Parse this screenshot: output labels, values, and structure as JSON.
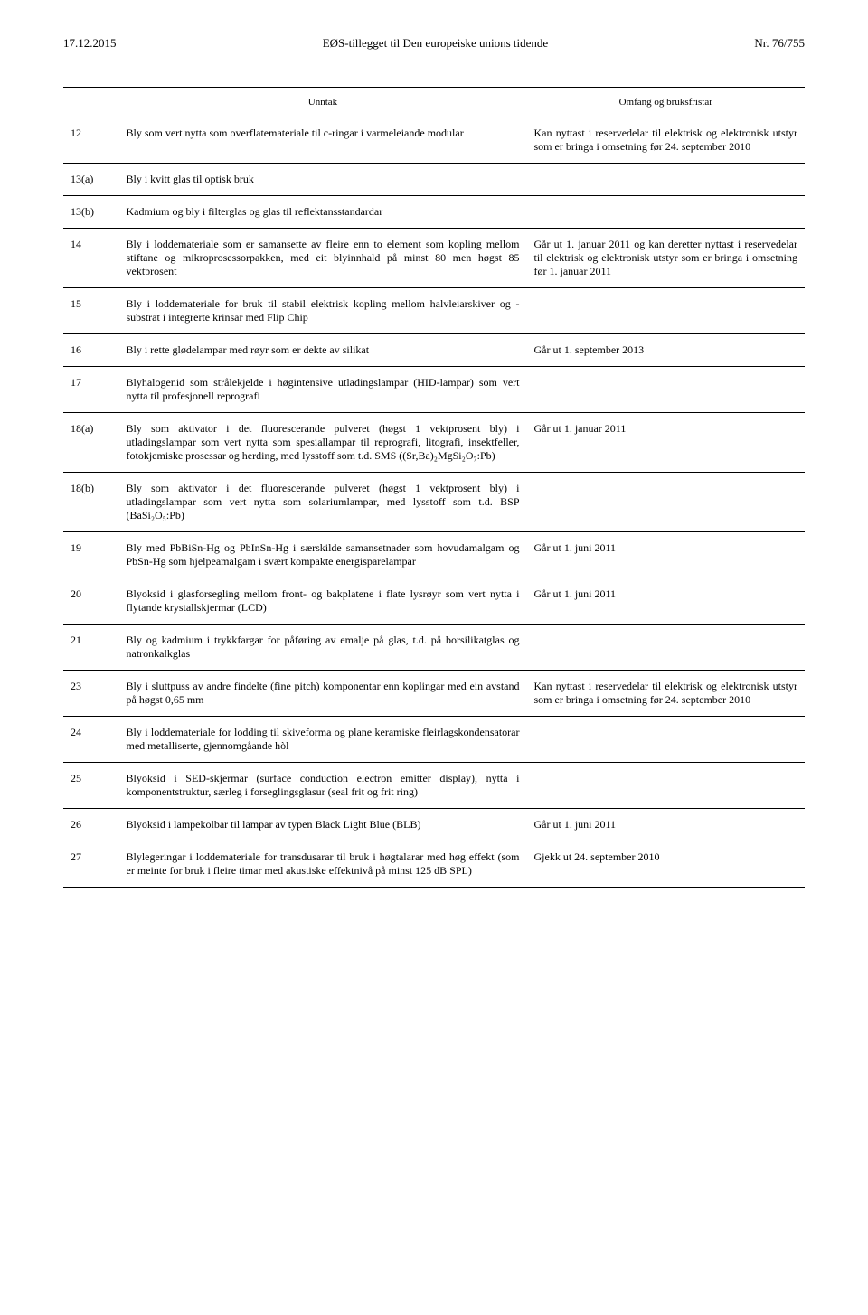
{
  "header": {
    "left": "17.12.2015",
    "center": "EØS-tillegget til Den europeiske unions tidende",
    "right": "Nr. 76/755"
  },
  "table": {
    "columns": [
      "",
      "Unntak",
      "Omfang og bruksfristar"
    ],
    "rows": [
      [
        "12",
        "Bly som vert nytta som overflatemateriale til c-ringar i varmeleiande modular",
        "Kan nyttast i reservedelar til elektrisk og elektronisk utstyr som er bringa i omsetning før 24. september 2010"
      ],
      [
        "13(a)",
        "Bly i kvitt glas til optisk bruk",
        ""
      ],
      [
        "13(b)",
        "Kadmium og bly i filterglas og glas til reflektansstandardar",
        ""
      ],
      [
        "14",
        "Bly i loddemateriale som er samansette av fleire enn to element som kopling mellom stiftane og mikroprosessorpakken, med eit blyinnhald på minst 80 men høgst 85 vektprosent",
        "Går ut 1. januar 2011 og kan deretter nyttast i reservedelar til elektrisk og elektronisk utstyr som er bringa i omsetning før 1. januar 2011"
      ],
      [
        "15",
        "Bly i loddemateriale for bruk til stabil elektrisk kopling mellom halvleiarskiver og -substrat i integrerte krinsar med Flip Chip",
        ""
      ],
      [
        "16",
        "Bly i rette glødelampar med røyr som er dekte av silikat",
        "Går ut 1. september 2013"
      ],
      [
        "17",
        "Blyhalogenid som strålekjelde i høgintensive utladingslampar (HID-lampar) som vert nytta til profesjonell reprografi",
        ""
      ],
      [
        "18(a)",
        "Bly som aktivator i det fluorescerande pulveret (høgst 1 vektprosent bly) i utladingslampar som vert nytta som spesiallampar til reprografi, litografi, insektfeller, fotokjemiske prosessar og herding, med lysstoff som t.d. SMS ((Sr,Ba)₂MgSi₂O₇:Pb)",
        "Går ut 1. januar 2011"
      ],
      [
        "18(b)",
        "Bly som aktivator i det fluorescerande pulveret (høgst 1 vektprosent bly) i utladingslampar som vert nytta som solariumlampar, med lysstoff som t.d. BSP (BaSi₂O₅:Pb)",
        ""
      ],
      [
        "19",
        "Bly med PbBiSn-Hg og PbInSn-Hg i særskilde samansetnader som hovudamalgam og PbSn-Hg som hjelpeamalgam i svært kompakte energisparelampar",
        "Går ut 1. juni 2011"
      ],
      [
        "20",
        "Blyoksid i glasforsegling mellom front- og bakplatene i flate lysrøyr som vert nytta i flytande krystall­skjermar (LCD)",
        "Går ut 1. juni 2011"
      ],
      [
        "21",
        "Bly og kadmium i trykkfargar for påføring av emalje på glas, t.d. på borsilikatglas og natronkalkglas",
        ""
      ],
      [
        "23",
        "Bly i sluttpuss av andre findelte (fine pitch) komponentar enn koplingar med ein avstand på høgst 0,65 mm",
        "Kan nyttast i reservedelar til elektrisk og elektronisk utstyr som er bringa i omsetning før 24. september 2010"
      ],
      [
        "24",
        "Bly i loddemateriale for lodding til skiveforma og plane keramiske fleirlagskondensatorar med metalliserte, gjennomgåande hòl",
        ""
      ],
      [
        "25",
        "Blyoksid i SED-skjermar (surface conduction electron emitter display), nytta i komponentstruktur, særleg i forseglingsglasur (seal frit og frit ring)",
        ""
      ],
      [
        "26",
        "Blyoksid i lampekolbar til lampar av typen Black Light Blue (BLB)",
        "Går ut 1. juni 2011"
      ],
      [
        "27",
        "Blylegeringar i loddemateriale for transdusarar til bruk i høgtalarar med høg effekt (som er meinte for bruk i fleire timar med akustiske effektnivå på minst 125 dB SPL)",
        "Gjekk ut 24. september 2010"
      ]
    ]
  }
}
